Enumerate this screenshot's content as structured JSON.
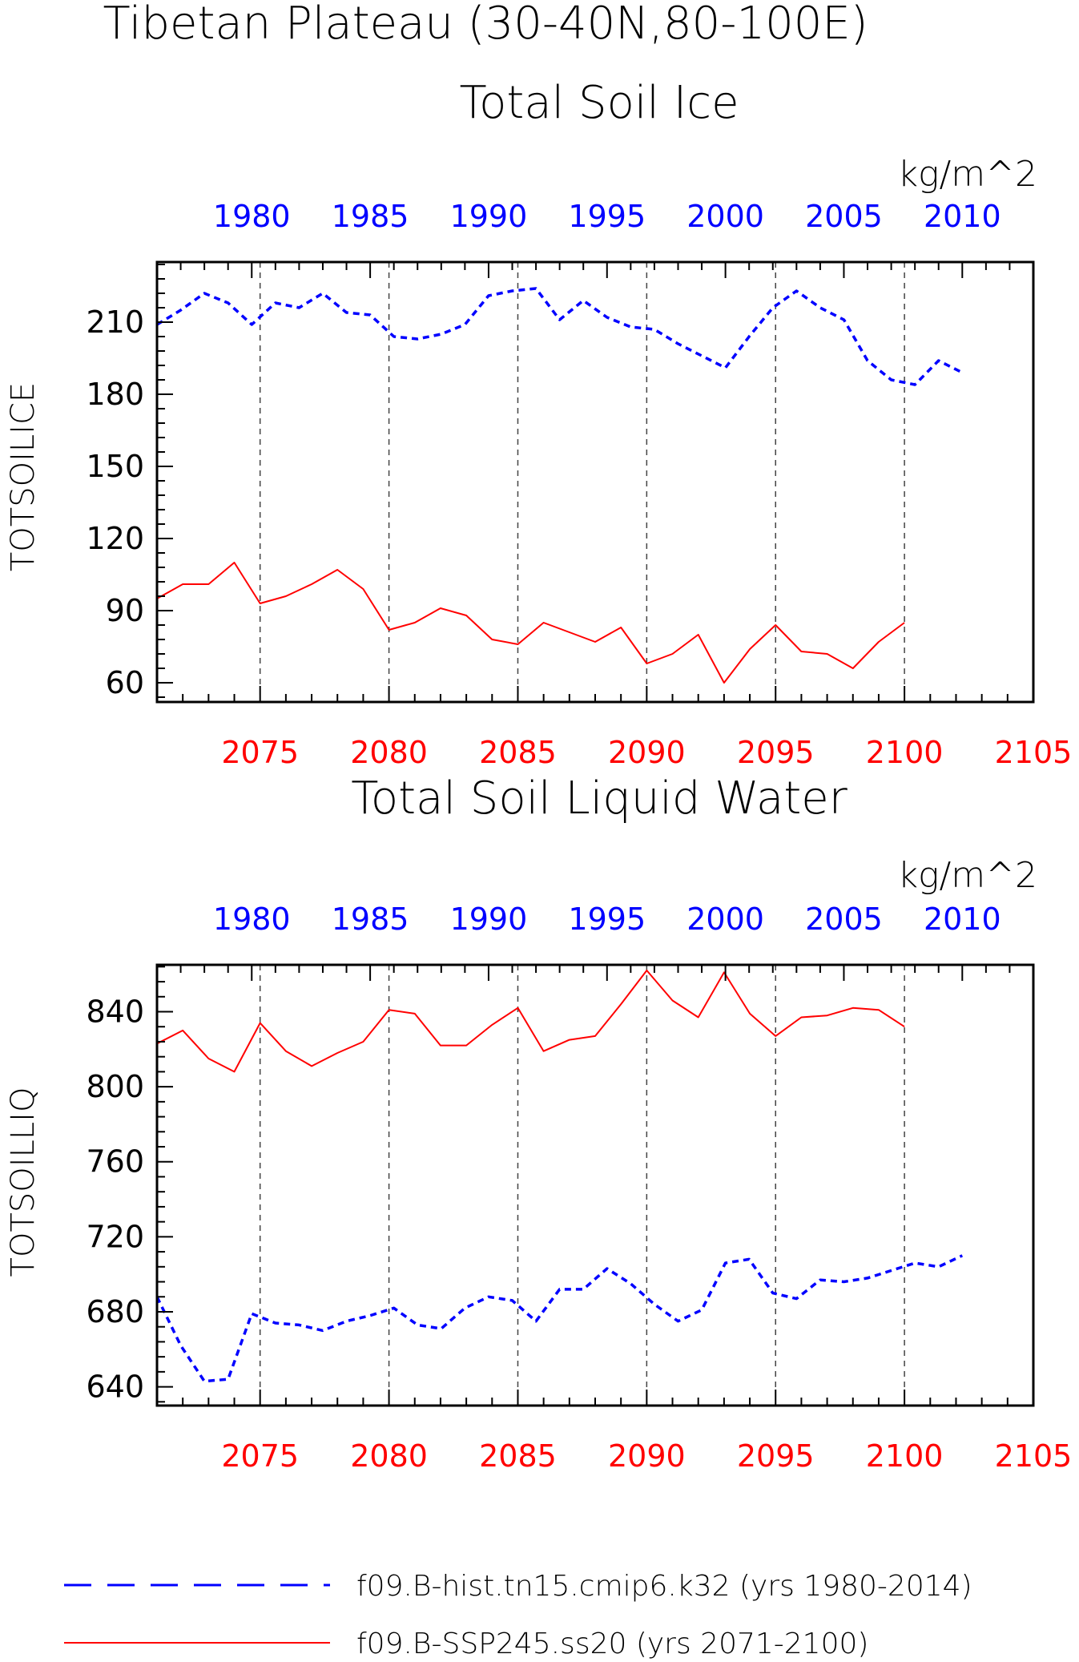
{
  "figure": {
    "title_line1": "Tibetan Plateau (30-40N,80-100E)"
  },
  "colors": {
    "hist": "#0000ff",
    "ssp": "#ff0000",
    "axis": "#000000",
    "grid": "#444444"
  },
  "legend": {
    "entries": [
      {
        "label": "f09.B-hist.tn15.cmip6.k32 (yrs 1980-2014)",
        "color": "#0000ff",
        "style": "dashed"
      },
      {
        "label": "f09.B-SSP245.ss20 (yrs 2071-2100)",
        "color": "#ff0000",
        "style": "solid"
      }
    ]
  },
  "chart_data": [
    {
      "type": "line",
      "title": "Total Soil Ice",
      "units": "kg/m^2",
      "ylabel": "TOTSOILICE",
      "ylim": [
        52,
        235
      ],
      "yticks": [
        60,
        90,
        120,
        150,
        180,
        210
      ],
      "top_axis": {
        "range": [
          1976,
          2013
        ],
        "ticks": [
          1980,
          1985,
          1990,
          1995,
          2000,
          2005,
          2010
        ]
      },
      "bottom_axis": {
        "range": [
          2071,
          2105
        ],
        "ticks": [
          2075,
          2080,
          2085,
          2090,
          2095,
          2100,
          2105
        ]
      },
      "grid": "vertical dashed at bottom-axis ticks 2075-2100",
      "series": [
        {
          "name": "f09.B-hist.tn15.cmip6.k32 (yrs 1980-2014)",
          "x": [
            1976,
            1977,
            1978,
            1979,
            1980,
            1981,
            1982,
            1983,
            1984,
            1985,
            1986,
            1987,
            1988,
            1989,
            1990,
            1991,
            1992,
            1993,
            1994,
            1995,
            1996,
            1997,
            1998,
            1999,
            2000,
            2001,
            2002,
            2003,
            2004,
            2005,
            2006,
            2007,
            2008,
            2009,
            2010,
            2011,
            2012,
            2013
          ],
          "values": [
            209,
            215,
            222,
            218,
            209,
            218,
            216,
            222,
            214,
            213,
            204,
            203,
            205,
            209,
            221,
            223,
            224,
            211,
            219,
            212,
            208,
            207,
            201,
            196,
            191,
            204,
            216,
            223,
            216,
            211,
            194,
            186,
            184,
            194,
            189,
            null,
            null,
            null
          ]
        },
        {
          "name": "f09.B-SSP245.ss20 (yrs 2071-2100)",
          "x": [
            2071,
            2072,
            2073,
            2074,
            2075,
            2076,
            2077,
            2078,
            2079,
            2080,
            2081,
            2082,
            2083,
            2084,
            2085,
            2086,
            2087,
            2088,
            2089,
            2090,
            2091,
            2092,
            2093,
            2094,
            2095,
            2096,
            2097,
            2098,
            2099,
            2100
          ],
          "values": [
            95,
            101,
            101,
            110,
            93,
            96,
            101,
            107,
            99,
            82,
            85,
            91,
            88,
            78,
            76,
            85,
            81,
            77,
            83,
            68,
            72,
            80,
            60,
            74,
            84,
            73,
            72,
            66,
            77,
            85
          ]
        }
      ]
    },
    {
      "type": "line",
      "title": "Total Soil Liquid Water",
      "units": "kg/m^2",
      "ylabel": "TOTSOILLIQ",
      "ylim": [
        630,
        865
      ],
      "yticks": [
        640,
        680,
        720,
        760,
        800,
        840
      ],
      "top_axis": {
        "range": [
          1976,
          2013
        ],
        "ticks": [
          1980,
          1985,
          1990,
          1995,
          2000,
          2005,
          2010
        ]
      },
      "bottom_axis": {
        "range": [
          2071,
          2105
        ],
        "ticks": [
          2075,
          2080,
          2085,
          2090,
          2095,
          2100,
          2105
        ]
      },
      "grid": "vertical dashed at bottom-axis ticks 2075-2100",
      "series": [
        {
          "name": "f09.B-hist.tn15.cmip6.k32 (yrs 1980-2014)",
          "x": [
            1976,
            1977,
            1978,
            1979,
            1980,
            1981,
            1982,
            1983,
            1984,
            1985,
            1986,
            1987,
            1988,
            1989,
            1990,
            1991,
            1992,
            1993,
            1994,
            1995,
            1996,
            1997,
            1998,
            1999,
            2000,
            2001,
            2002,
            2003,
            2004,
            2005,
            2006,
            2007,
            2008,
            2009,
            2010
          ],
          "values": [
            688,
            662,
            643,
            644,
            679,
            674,
            673,
            670,
            675,
            678,
            682,
            673,
            671,
            682,
            688,
            686,
            675,
            692,
            692,
            703,
            695,
            684,
            675,
            681,
            706,
            708,
            690,
            687,
            697,
            696,
            698,
            702,
            706,
            704,
            710
          ]
        },
        {
          "name": "f09.B-SSP245.ss20 (yrs 2071-2100)",
          "x": [
            2071,
            2072,
            2073,
            2074,
            2075,
            2076,
            2077,
            2078,
            2079,
            2080,
            2081,
            2082,
            2083,
            2084,
            2085,
            2086,
            2087,
            2088,
            2089,
            2090,
            2091,
            2092,
            2093,
            2094,
            2095,
            2096,
            2097,
            2098,
            2099,
            2100
          ],
          "values": [
            823,
            830,
            815,
            808,
            834,
            819,
            811,
            818,
            824,
            841,
            839,
            822,
            822,
            833,
            842,
            819,
            825,
            827,
            844,
            862,
            846,
            837,
            861,
            839,
            827,
            837,
            838,
            842,
            841,
            832
          ]
        }
      ]
    }
  ]
}
